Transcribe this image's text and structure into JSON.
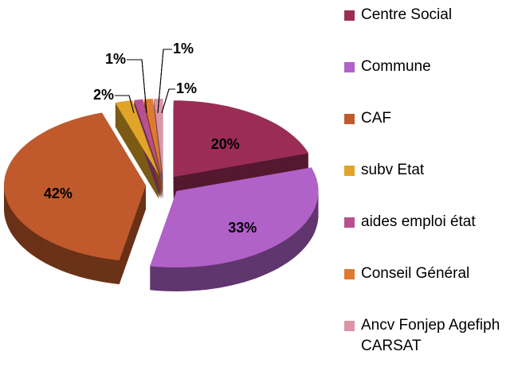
{
  "chart_data": {
    "type": "pie",
    "categories": [
      "Centre Social",
      "Commune",
      "CAF",
      "subv Etat",
      "aides emploi état",
      "Conseil Général",
      "Ancv Fonjep Agefiph CARSAT"
    ],
    "values": [
      20,
      33,
      42,
      2,
      1,
      1,
      1
    ],
    "value_labels": [
      "20%",
      "33%",
      "42%",
      "2%",
      "1%",
      "1%",
      "1%"
    ],
    "colors": [
      "#9b2d55",
      "#b062c8",
      "#c05a2c",
      "#e0a428",
      "#b85090",
      "#e07a30",
      "#dc94a6"
    ],
    "legend": "right"
  }
}
